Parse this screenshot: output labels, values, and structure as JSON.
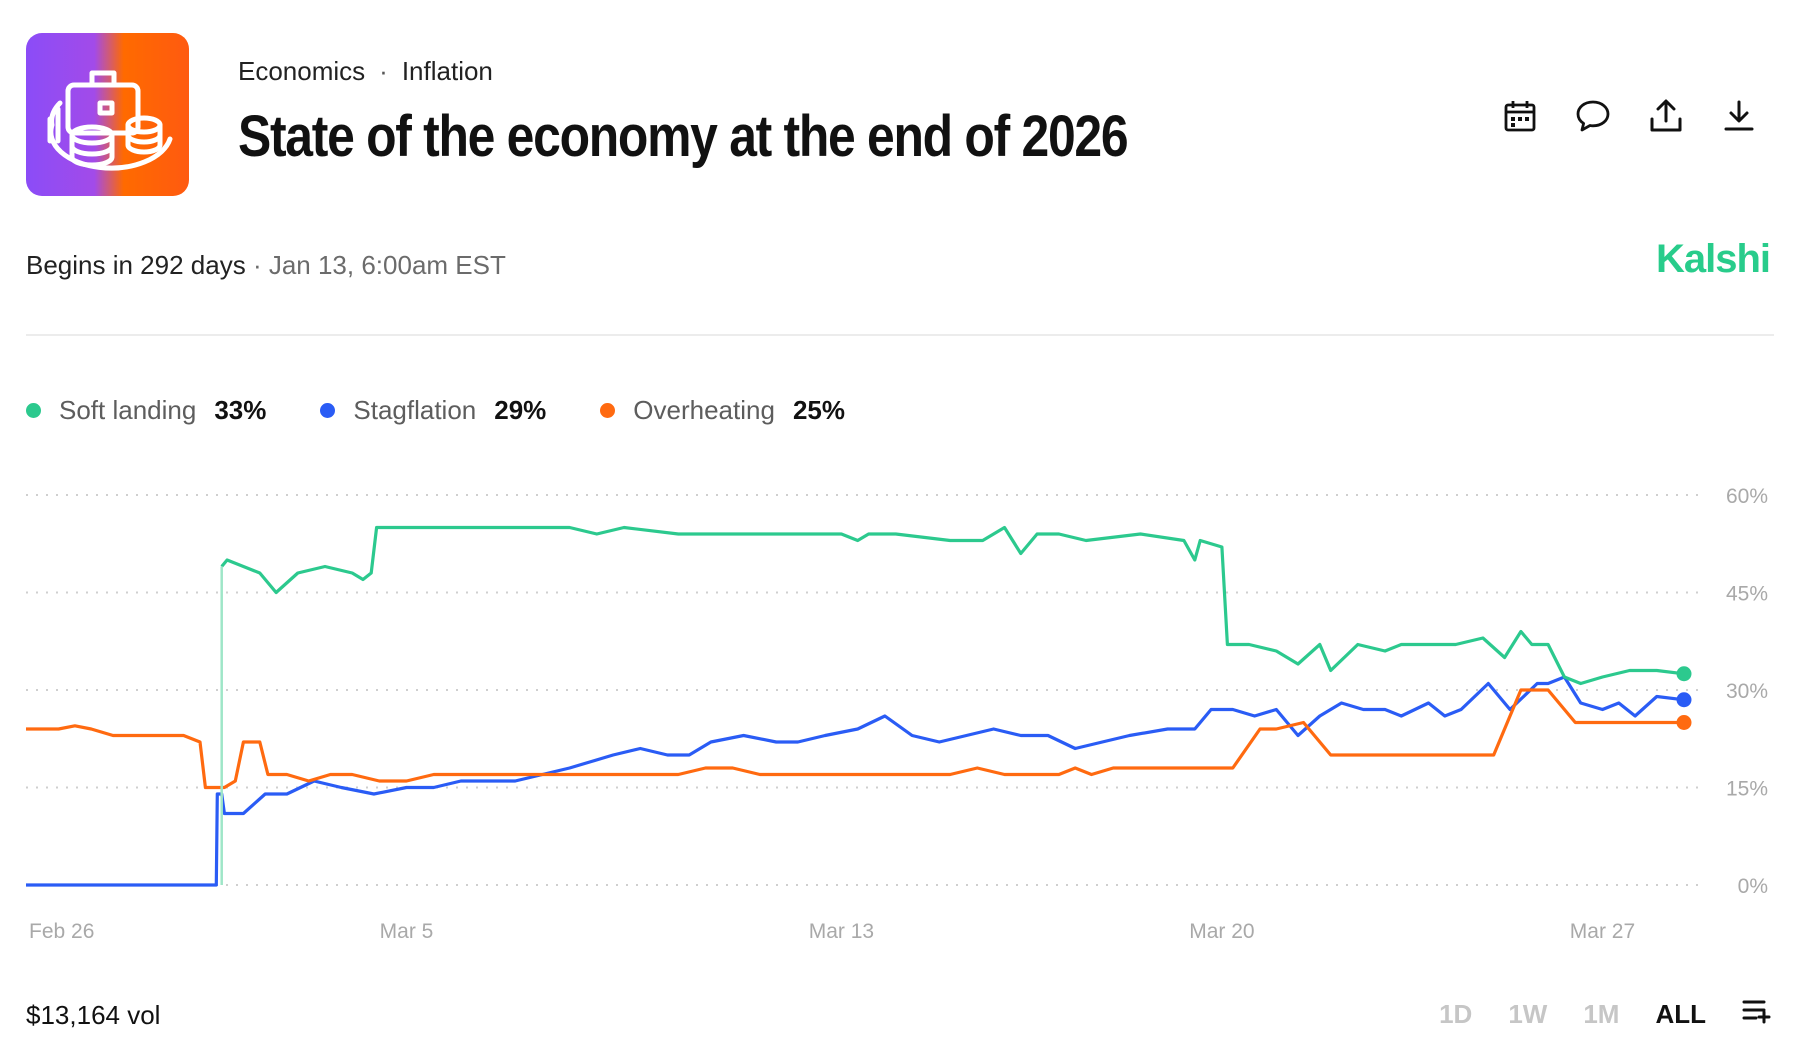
{
  "breadcrumb": {
    "category": "Economics",
    "separator": "·",
    "subcategory": "Inflation"
  },
  "title": "State of the economy at the end of 2026",
  "icons": [
    "calendar-icon",
    "comment-icon",
    "share-icon",
    "download-icon"
  ],
  "schedule": {
    "begins": "Begins in 292 days",
    "separator": " · ",
    "date": "Jan 13, 6:00am EST"
  },
  "brand": "Kalshi",
  "colors": {
    "brand": "#28cc8b",
    "soft_landing": "#2cc98e",
    "stagflation": "#2a5cf5",
    "overheating": "#ff6a10"
  },
  "legend": [
    {
      "name": "Soft landing",
      "pct": "33%"
    },
    {
      "name": "Stagflation",
      "pct": "29%"
    },
    {
      "name": "Overheating",
      "pct": "25%"
    }
  ],
  "footer": {
    "volume": "$13,164 vol",
    "ranges": [
      "1D",
      "1W",
      "1M",
      "ALL"
    ],
    "active_range": "ALL"
  },
  "chart_data": {
    "type": "line",
    "x_ticks": [
      "Feb 26",
      "Mar 5",
      "Mar 13",
      "Mar 20",
      "Mar 27"
    ],
    "x_tick_days": [
      0,
      7,
      15,
      22,
      29
    ],
    "y_ticks": [
      "0%",
      "15%",
      "30%",
      "45%",
      "60%"
    ],
    "ylim": [
      0,
      60
    ],
    "xlim": [
      0,
      30.5
    ],
    "series": [
      {
        "name": "Soft landing",
        "x": [
          0,
          3.6,
          3.6,
          3.7,
          4.0,
          4.3,
          4.6,
          5.0,
          5.5,
          6.0,
          6.2,
          6.35,
          6.45,
          7.5,
          9,
          10,
          10.5,
          11,
          12,
          13,
          14,
          15,
          15.3,
          15.5,
          16,
          17,
          17.6,
          18.0,
          18.3,
          18.6,
          19,
          19.5,
          20.5,
          21.3,
          21.5,
          21.6,
          22.0,
          22.1,
          22.5,
          23,
          23.4,
          23.8,
          24,
          24.5,
          25,
          25.3,
          25.6,
          26,
          26.3,
          26.8,
          27.2,
          27.5,
          27.7,
          28,
          28.3,
          28.6,
          29,
          29.5,
          30.0,
          30.5
        ],
        "y": [
          null,
          null,
          49,
          50,
          49,
          48,
          45,
          48,
          49,
          48,
          47,
          48,
          55,
          55,
          55,
          55,
          54,
          55,
          54,
          54,
          54,
          54,
          53,
          54,
          54,
          53,
          53,
          55,
          51,
          54,
          54,
          53,
          54,
          53,
          50,
          53,
          52,
          37,
          37,
          36,
          34,
          37,
          33,
          37,
          36,
          37,
          37,
          37,
          37,
          38,
          35,
          39,
          37,
          37,
          32,
          31,
          32,
          33,
          33,
          32.5
        ]
      },
      {
        "name": "Stagflation",
        "x": [
          0,
          3.5,
          3.52,
          3.6,
          3.65,
          3.8,
          4.0,
          4.4,
          4.8,
          5.3,
          5.8,
          6.4,
          7.0,
          7.5,
          8,
          8.5,
          9,
          9.5,
          10,
          10.4,
          10.8,
          11.3,
          11.8,
          12.2,
          12.6,
          13.2,
          13.8,
          14.2,
          14.7,
          15.3,
          15.8,
          16.3,
          16.8,
          17.3,
          17.8,
          18.3,
          18.8,
          19.3,
          19.8,
          20.3,
          21.0,
          21.5,
          21.8,
          22.2,
          22.6,
          23.0,
          23.4,
          23.8,
          24.2,
          24.6,
          25.0,
          25.3,
          25.8,
          26.1,
          26.4,
          26.9,
          27.3,
          27.8,
          28.0,
          28.3,
          28.6,
          29.0,
          29.3,
          29.6,
          30.0,
          30.5
        ],
        "y": [
          0,
          0,
          14,
          14,
          11,
          11,
          11,
          14,
          14,
          16,
          15,
          14,
          15,
          15,
          16,
          16,
          16,
          17,
          18,
          19,
          20,
          21,
          20,
          20,
          22,
          23,
          22,
          22,
          23,
          24,
          26,
          23,
          22,
          23,
          24,
          23,
          23,
          21,
          22,
          23,
          24,
          24,
          27,
          27,
          26,
          27,
          23,
          26,
          28,
          27,
          27,
          26,
          28,
          26,
          27,
          31,
          27,
          31,
          31,
          32,
          28,
          27,
          28,
          26,
          29,
          28.5
        ]
      },
      {
        "name": "Overheating",
        "x": [
          0,
          0.6,
          0.9,
          1.2,
          1.6,
          2.0,
          2.5,
          2.9,
          3.2,
          3.3,
          3.5,
          3.65,
          3.85,
          4.0,
          4.3,
          4.45,
          4.8,
          5.2,
          5.6,
          6.0,
          6.5,
          7.0,
          7.5,
          8,
          8.5,
          9,
          9.5,
          10,
          10.5,
          11,
          11.5,
          12,
          12.5,
          13,
          13.5,
          14,
          14.5,
          15,
          15.5,
          16,
          16.5,
          17,
          17.5,
          18,
          18.5,
          19,
          19.3,
          19.6,
          20,
          20.5,
          21,
          21.3,
          21.5,
          22.0,
          22.2,
          22.7,
          23.0,
          23.5,
          24.0,
          24.3,
          25.0,
          25.4,
          25.8,
          26.0,
          26.3,
          26.6,
          27.0,
          27.5,
          28.0,
          28.5,
          29.0,
          29.5,
          30.0,
          30.5
        ],
        "y": [
          24,
          24,
          24.5,
          24,
          23,
          23,
          23,
          23,
          22,
          15,
          15,
          15,
          16,
          22,
          22,
          17,
          17,
          16,
          17,
          17,
          16,
          16,
          17,
          17,
          17,
          17,
          17,
          17,
          17,
          17,
          17,
          17,
          18,
          18,
          17,
          17,
          17,
          17,
          17,
          17,
          17,
          17,
          18,
          17,
          17,
          17,
          18,
          17,
          18,
          18,
          18,
          18,
          18,
          18,
          18,
          24,
          24,
          25,
          20,
          20,
          20,
          20,
          20,
          20,
          20,
          20,
          20,
          30,
          30,
          25,
          25,
          25,
          25,
          25
        ]
      }
    ]
  }
}
